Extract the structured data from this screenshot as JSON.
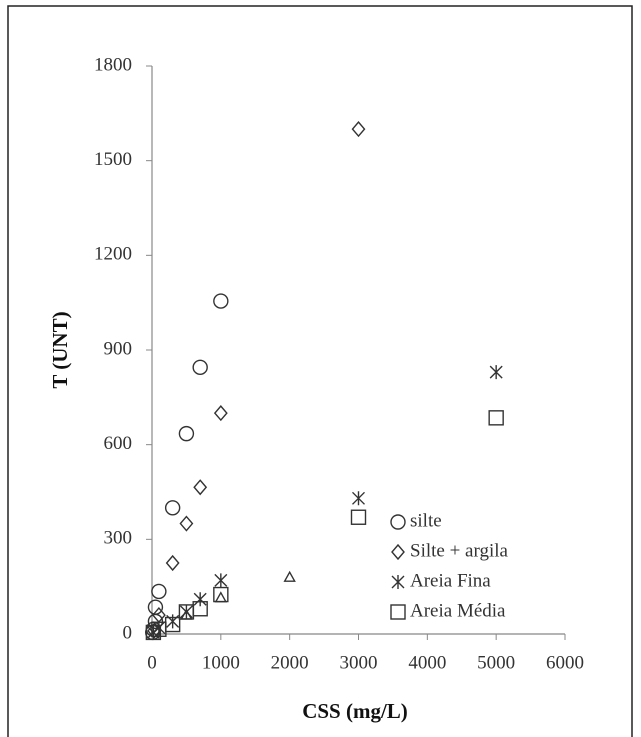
{
  "chart_data": {
    "type": "scatter",
    "xlabel": "CSS (mg/L)",
    "ylabel": "T (UNT)",
    "xlim": [
      0,
      6000
    ],
    "xticks": [
      0,
      1000,
      2000,
      3000,
      4000,
      5000,
      6000
    ],
    "ylim": [
      0,
      1800
    ],
    "yticks": [
      0,
      300,
      600,
      900,
      1200,
      1500,
      1800
    ],
    "series": [
      {
        "name": "silte",
        "marker": "circle",
        "color": "#333333",
        "x": [
          10,
          20,
          50,
          50,
          100,
          300,
          500,
          700,
          1000
        ],
        "y": [
          5,
          15,
          40,
          85,
          135,
          400,
          635,
          845,
          1055
        ]
      },
      {
        "name": "Silte + argila",
        "marker": "diamond",
        "color": "#333333",
        "x": [
          30,
          100,
          300,
          500,
          700,
          1000,
          3000
        ],
        "y": [
          10,
          60,
          225,
          350,
          465,
          700,
          1600
        ]
      },
      {
        "name": "Areia Fina",
        "marker": "asterisk",
        "color": "#333333",
        "x": [
          20,
          100,
          300,
          500,
          700,
          1000,
          3000,
          5000
        ],
        "y": [
          5,
          20,
          40,
          70,
          110,
          170,
          430,
          830
        ]
      },
      {
        "name": "Areia Média",
        "marker": "square",
        "color": "#333333",
        "x": [
          20,
          100,
          300,
          500,
          700,
          1000,
          3000,
          5000
        ],
        "y": [
          5,
          15,
          30,
          70,
          80,
          125,
          370,
          685
        ]
      },
      {
        "marker": "triangle",
        "color": "#333333",
        "x": [
          500,
          1000,
          2000
        ],
        "y": [
          60,
          115,
          180
        ]
      }
    ]
  }
}
